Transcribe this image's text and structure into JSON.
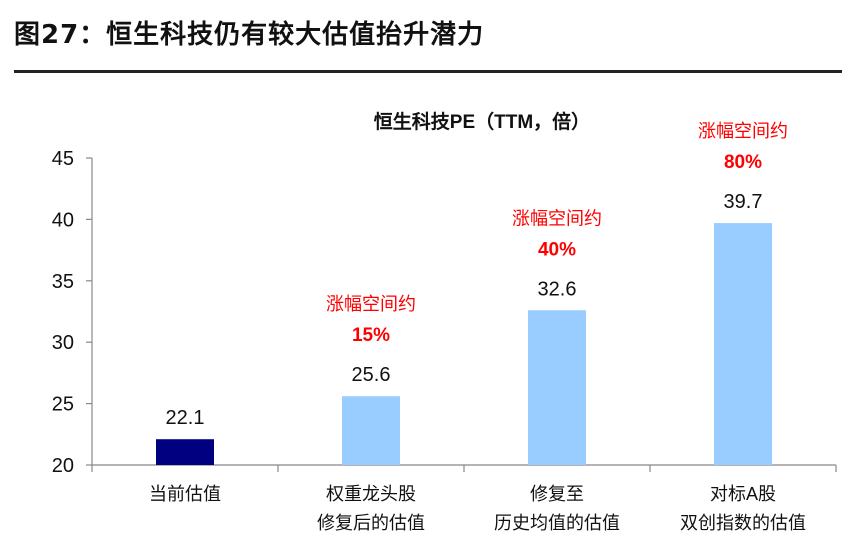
{
  "figure": {
    "title": "图27：恒生科技仍有较大估值抬升潜力"
  },
  "chart_data": {
    "type": "bar",
    "title": "恒生科技PE（TTM，倍）",
    "categories": [
      [
        "当前估值"
      ],
      [
        "权重龙头股",
        "修复后的估值"
      ],
      [
        "修复至",
        "历史均值的估值"
      ],
      [
        "对标A股",
        "双创指数的估值"
      ]
    ],
    "values": [
      22.1,
      25.6,
      32.6,
      39.7
    ],
    "value_labels": [
      "22.1",
      "25.6",
      "32.6",
      "39.7"
    ],
    "bar_colors": [
      "#000080",
      "#99ccff",
      "#99ccff",
      "#99ccff"
    ],
    "annotations": [
      null,
      [
        "涨幅空间约",
        "15%"
      ],
      [
        "涨幅空间约",
        "40%"
      ],
      [
        "涨幅空间约",
        "80%"
      ]
    ],
    "annotation_color": "#ff0000",
    "ylim": [
      20,
      45
    ],
    "yticks": [
      20,
      25,
      30,
      35,
      40,
      45
    ],
    "grid": false,
    "xlabel": "",
    "ylabel": ""
  }
}
